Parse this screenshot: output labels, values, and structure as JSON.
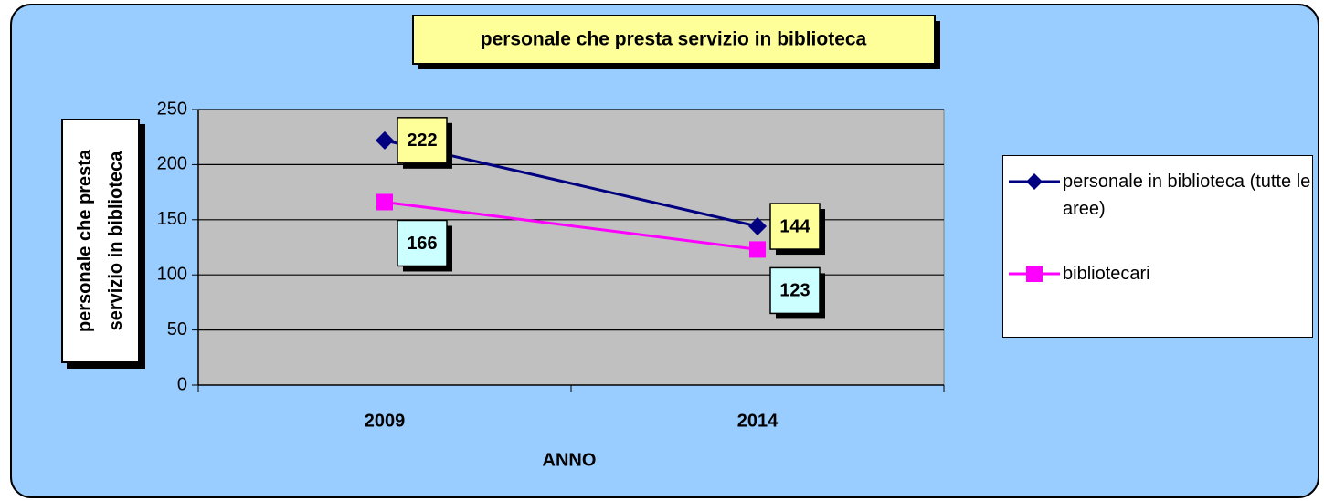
{
  "chart_data": {
    "type": "line",
    "title": "personale che presta servizio in biblioteca",
    "x_label": "ANNO",
    "y_label": "personale che presta servizio in biblioteca",
    "categories": [
      "2009",
      "2014"
    ],
    "series": [
      {
        "name": "personale in biblioteca (tutte le aree)",
        "color": "#000080",
        "marker": "diamond",
        "label_color": "#ffff99",
        "values": [
          222,
          144
        ]
      },
      {
        "name": "bibliotecari",
        "color": "#ff00ff",
        "marker": "square",
        "label_color": "#ccffff",
        "values": [
          166,
          123
        ]
      }
    ],
    "ylim": [
      0,
      250
    ],
    "yticks": [
      0,
      50,
      100,
      150,
      200,
      250
    ],
    "grid": true,
    "legend": "right"
  }
}
